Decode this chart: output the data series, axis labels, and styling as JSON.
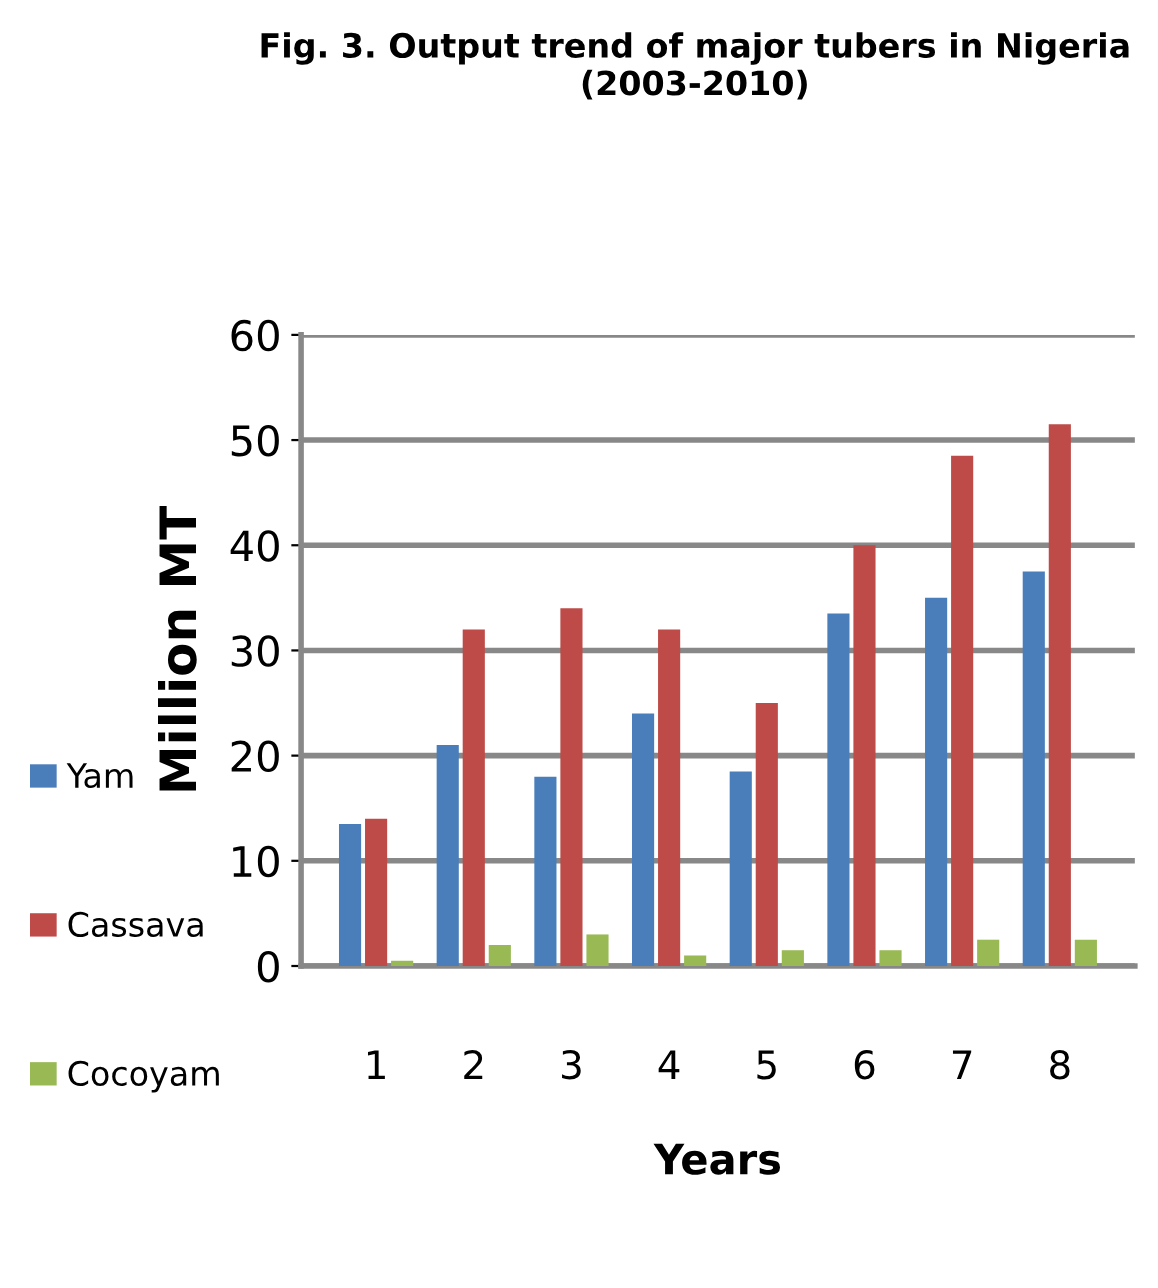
{
  "chart_data": {
    "type": "bar",
    "title": "Fig. 3. Output trend of major tubers in Nigeria (2003-2010)",
    "xlabel": "Years",
    "ylabel": "Million MT",
    "categories": [
      "1",
      "2",
      "3",
      "4",
      "5",
      "6",
      "7",
      "8"
    ],
    "series": [
      {
        "name": "Yam",
        "color": "#4a7ebb",
        "values": [
          13.5,
          21,
          18,
          24,
          18.5,
          33.5,
          35,
          37.5
        ]
      },
      {
        "name": "Cassava",
        "color": "#be4b48",
        "values": [
          14,
          32,
          34,
          32,
          25,
          40,
          48.5,
          51.5
        ]
      },
      {
        "name": "Cocoyam",
        "color": "#98b954",
        "values": [
          0.5,
          2,
          3,
          1,
          1.5,
          1.5,
          2.5,
          2.5
        ]
      }
    ],
    "ylim": [
      0,
      60
    ],
    "yticks": [
      0,
      10,
      20,
      30,
      40,
      50,
      60
    ],
    "grid": "y",
    "legend": "left"
  }
}
